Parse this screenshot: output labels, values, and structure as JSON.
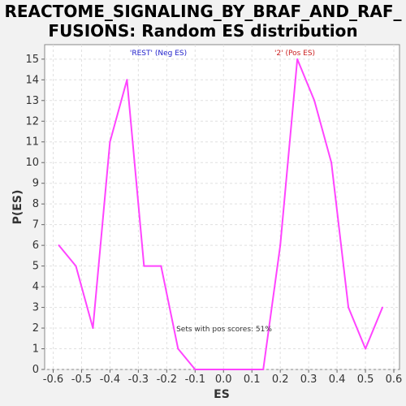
{
  "chart_data": {
    "type": "line",
    "title_line1": "REACTOME_SIGNALING_BY_BRAF_AND_RAF_",
    "title_line2": "FUSIONS: Random ES distribution",
    "xlabel": "ES",
    "ylabel": "P(ES)",
    "xlim": [
      -0.63,
      0.62
    ],
    "ylim": [
      0,
      15.7
    ],
    "xticks": [
      -0.6,
      -0.5,
      -0.4,
      -0.3,
      -0.2,
      -0.1,
      0.0,
      0.1,
      0.2,
      0.3,
      0.4,
      0.5,
      0.6
    ],
    "xtick_labels": [
      "-0.6",
      "-0.5",
      "-0.4",
      "-0.3",
      "-0.2",
      "-0.1",
      "0.0",
      "0.1",
      "0.2",
      "0.3",
      "0.4",
      "0.5",
      "0.6"
    ],
    "yticks": [
      0,
      1,
      2,
      3,
      4,
      5,
      6,
      7,
      8,
      9,
      10,
      11,
      12,
      13,
      14,
      15
    ],
    "grid": true,
    "series": [
      {
        "color": "#ff44ff",
        "x": [
          -0.58,
          -0.52,
          -0.46,
          -0.4,
          -0.34,
          -0.28,
          -0.22,
          -0.16,
          -0.1,
          -0.04,
          0.02,
          0.08,
          0.14,
          0.2,
          0.26,
          0.32,
          0.38,
          0.44,
          0.5,
          0.56
        ],
        "y": [
          6,
          5,
          2,
          11,
          14,
          5,
          5,
          1,
          0,
          0,
          0,
          0,
          0,
          6,
          15,
          13,
          10,
          3,
          1,
          3
        ]
      }
    ],
    "annotations": {
      "neg_label": "'REST' (Neg ES)",
      "pos_label": "'2' (Pos ES)",
      "pos_scores": "Sets with pos scores: 51%"
    },
    "colors": {
      "neg": "#2222cc",
      "pos": "#cc2222",
      "line": "#ff44ff"
    }
  }
}
